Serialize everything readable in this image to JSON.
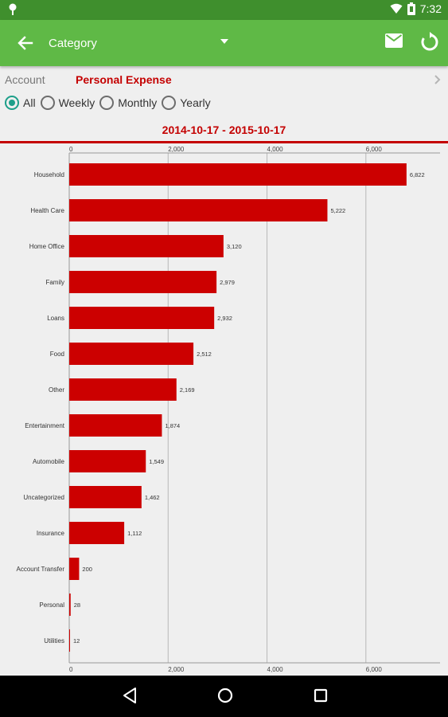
{
  "status_bar": {
    "time": "7:32",
    "icons": [
      "location-pin-icon",
      "wifi-icon",
      "battery-icon"
    ]
  },
  "app_bar": {
    "title": "Category",
    "icons": [
      "back-arrow-icon",
      "dropdown-arrow-icon",
      "mail-icon",
      "refresh-icon"
    ]
  },
  "account": {
    "label": "Account",
    "value": "Personal Expense"
  },
  "period": {
    "options": [
      "All",
      "Weekly",
      "Monthly",
      "Yearly"
    ],
    "selected": "All"
  },
  "date_range": "2014-10-17 - 2015-10-17",
  "colors": {
    "status_bar": "#3f8f2d",
    "app_bar": "#5fb946",
    "accent_red": "#c40000",
    "radio_selected": "#1e9f8a"
  },
  "chart_data": {
    "type": "bar",
    "orientation": "horizontal",
    "categories": [
      "Household",
      "Health Care",
      "Home Office",
      "Family",
      "Loans",
      "Food",
      "Other",
      "Entertainment",
      "Automobile",
      "Uncategorized",
      "Insurance",
      "Account Transfer",
      "Personal",
      "Utilities"
    ],
    "values": [
      6822,
      5222,
      3120,
      2979,
      2932,
      2512,
      2169,
      1874,
      1549,
      1462,
      1112,
      200,
      28,
      12
    ],
    "value_labels": [
      "6,822",
      "5,222",
      "3,120",
      "2,979",
      "2,932",
      "2,512",
      "2,169",
      "1,874",
      "1,549",
      "1,462",
      "1,112",
      "200",
      "28",
      "12"
    ],
    "xlim": [
      0,
      7500
    ],
    "ticks": [
      0,
      2000,
      4000,
      6000
    ],
    "tick_labels": [
      "0",
      "2,000",
      "4,000",
      "6,000"
    ],
    "grid": true,
    "bar_color": "#cc0000"
  },
  "nav_bar": {
    "icons": [
      "nav-back-icon",
      "nav-home-icon",
      "nav-recents-icon"
    ]
  }
}
